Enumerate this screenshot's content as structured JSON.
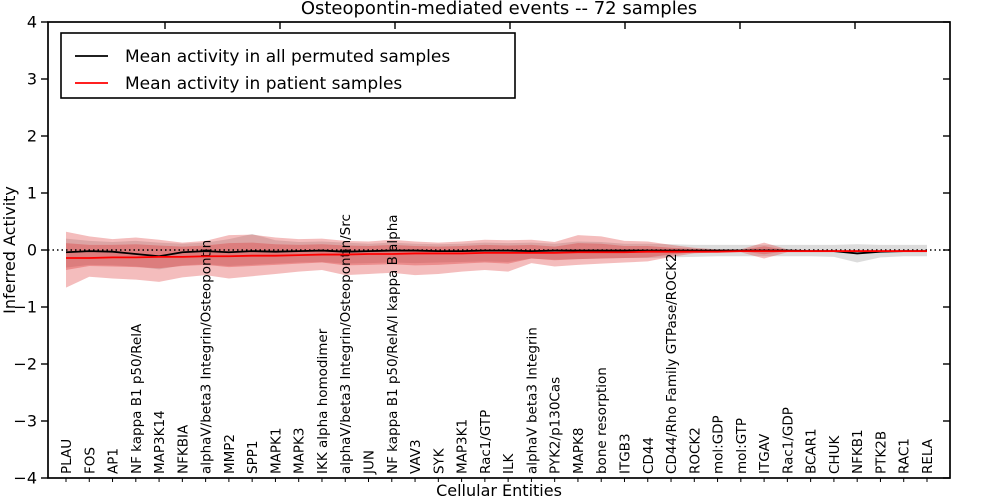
{
  "chart_data": {
    "type": "line",
    "title": "Osteopontin-mediated events -- 72 samples",
    "xlabel": "Cellular Entities",
    "ylabel": "Inferred Activity",
    "ylim": [
      -4,
      4
    ],
    "ytick_labels": [
      "4",
      "3",
      "2",
      "1",
      "0",
      "−1",
      "−2",
      "−3",
      "−4"
    ],
    "ytick_values": [
      4,
      3,
      2,
      1,
      0,
      -1,
      -2,
      -3,
      -4
    ],
    "grid": "off",
    "zero_reference_line": 0,
    "legend_position": "upper left",
    "legend": [
      "Mean activity in all permuted samples",
      "Mean activity in patient samples"
    ],
    "colors": {
      "permuted_line": "#000000",
      "patient_line": "#ff0000",
      "permuted_band": "#d8d8d8",
      "patient_band": "#dd3333",
      "frame": "#000000",
      "background": "#ffffff"
    },
    "categories": [
      "PLAU",
      "FOS",
      "AP1",
      "NF kappa B1 p50/RelA",
      "MAP3K14",
      "NFKBIA",
      "alphaV/beta3 Integrin/Osteopontin",
      "MMP2",
      "SPP1",
      "MAPK1",
      "MAPK3",
      "IKK alpha homodimer",
      "alphaV/beta3 Integrin/Osteopontin/Src",
      "JUN",
      "NF kappa B1 p50/RelA/I kappa B alpha",
      "VAV3",
      "SYK",
      "MAP3K1",
      "Rac1/GTP",
      "ILK",
      "alphaV beta3 Integrin",
      "PYK2/p130Cas",
      "MAPK8",
      "bone resorption",
      "ITGB3",
      "CD44",
      "CD44/Rho Family GTPase/ROCK2",
      "ROCK2",
      "mol:GDP",
      "mol:GTP",
      "ITGAV",
      "Rac1/GDP",
      "BCAR1",
      "CHUK",
      "NFKB1",
      "PTK2B",
      "RAC1",
      "RELA"
    ],
    "series": [
      {
        "name": "Mean activity in all permuted samples",
        "color": "#000000",
        "values": [
          -0.04,
          -0.02,
          -0.03,
          -0.07,
          -0.11,
          -0.04,
          -0.02,
          -0.04,
          -0.02,
          -0.03,
          -0.02,
          -0.01,
          -0.03,
          -0.02,
          -0.01,
          -0.01,
          -0.02,
          -0.02,
          -0.01,
          -0.01,
          -0.02,
          -0.01,
          -0.01,
          -0.01,
          -0.01,
          -0.01,
          -0.01,
          -0.01,
          -0.01,
          -0.01,
          -0.01,
          -0.01,
          -0.02,
          -0.02,
          -0.06,
          -0.03,
          -0.02,
          -0.02
        ]
      },
      {
        "name": "Mean activity in patient samples",
        "color": "#ff0000",
        "values": [
          -0.14,
          -0.14,
          -0.13,
          -0.13,
          -0.12,
          -0.12,
          -0.11,
          -0.11,
          -0.1,
          -0.1,
          -0.09,
          -0.08,
          -0.08,
          -0.07,
          -0.07,
          -0.06,
          -0.06,
          -0.06,
          -0.05,
          -0.05,
          -0.05,
          -0.05,
          -0.04,
          -0.04,
          -0.04,
          -0.03,
          -0.03,
          -0.03,
          -0.03,
          -0.02,
          -0.02,
          -0.02,
          -0.02,
          -0.02,
          -0.02,
          -0.02,
          -0.02,
          -0.02
        ]
      }
    ],
    "bands": [
      {
        "name": "permuted-samples-std-band",
        "color": "#d8d8d8",
        "opacity": 0.9,
        "top": [
          0.2,
          0.16,
          0.14,
          0.16,
          0.13,
          0.11,
          0.13,
          0.19,
          0.28,
          0.17,
          0.14,
          0.15,
          0.13,
          0.11,
          0.13,
          0.11,
          0.1,
          0.11,
          0.13,
          0.12,
          0.13,
          0.11,
          0.15,
          0.14,
          0.11,
          0.11,
          0.1,
          0.09,
          0.09,
          0.09,
          0.09,
          0.09,
          0.09,
          0.09,
          0.1,
          0.09,
          0.09,
          0.09
        ],
        "bottom": [
          -0.31,
          -0.26,
          -0.27,
          -0.29,
          -0.34,
          -0.27,
          -0.25,
          -0.28,
          -0.26,
          -0.24,
          -0.22,
          -0.21,
          -0.24,
          -0.23,
          -0.22,
          -0.23,
          -0.22,
          -0.21,
          -0.2,
          -0.21,
          -0.15,
          -0.17,
          -0.16,
          -0.15,
          -0.14,
          -0.14,
          -0.13,
          -0.12,
          -0.11,
          -0.11,
          -0.11,
          -0.11,
          -0.11,
          -0.12,
          -0.22,
          -0.13,
          -0.11,
          -0.11
        ]
      },
      {
        "name": "patient-samples-outer-band",
        "color": "#dd3333",
        "opacity": 0.32,
        "top": [
          0.32,
          0.24,
          0.19,
          0.22,
          0.18,
          0.13,
          0.16,
          0.26,
          0.27,
          0.22,
          0.19,
          0.2,
          0.16,
          0.15,
          0.18,
          0.15,
          0.13,
          0.15,
          0.18,
          0.17,
          0.18,
          0.14,
          0.26,
          0.24,
          0.16,
          0.15,
          0.09,
          0.04,
          0.01,
          0.01,
          0.13,
          0.01,
          0.0,
          0.0,
          0.0,
          0.0,
          0.0,
          0.0
        ],
        "bottom": [
          -0.66,
          -0.47,
          -0.5,
          -0.52,
          -0.56,
          -0.48,
          -0.44,
          -0.5,
          -0.46,
          -0.42,
          -0.38,
          -0.35,
          -0.44,
          -0.42,
          -0.4,
          -0.44,
          -0.42,
          -0.38,
          -0.35,
          -0.38,
          -0.23,
          -0.29,
          -0.26,
          -0.24,
          -0.22,
          -0.2,
          -0.12,
          -0.06,
          -0.04,
          -0.04,
          -0.15,
          -0.04,
          -0.04,
          -0.04,
          -0.04,
          -0.04,
          -0.04,
          -0.04
        ]
      },
      {
        "name": "patient-samples-inner-band",
        "color": "#dd3333",
        "opacity": 0.35,
        "top": [
          0.12,
          0.09,
          0.09,
          0.1,
          0.08,
          0.06,
          0.08,
          0.12,
          0.13,
          0.1,
          0.09,
          0.1,
          0.08,
          0.07,
          0.09,
          0.07,
          0.06,
          0.07,
          0.09,
          0.08,
          0.09,
          0.06,
          0.12,
          0.11,
          0.07,
          0.07,
          0.04,
          0.02,
          0.0,
          0.0,
          0.065,
          0.0,
          0.0,
          0.0,
          0.0,
          0.0,
          0.0,
          0.0
        ],
        "bottom": [
          -0.35,
          -0.28,
          -0.29,
          -0.3,
          -0.32,
          -0.28,
          -0.26,
          -0.3,
          -0.28,
          -0.26,
          -0.24,
          -0.22,
          -0.27,
          -0.26,
          -0.25,
          -0.27,
          -0.26,
          -0.24,
          -0.22,
          -0.24,
          -0.15,
          -0.18,
          -0.16,
          -0.15,
          -0.14,
          -0.13,
          -0.08,
          -0.04,
          -0.02,
          -0.02,
          -0.075,
          -0.02,
          -0.02,
          -0.02,
          -0.02,
          -0.02,
          -0.02,
          -0.02
        ]
      }
    ]
  }
}
